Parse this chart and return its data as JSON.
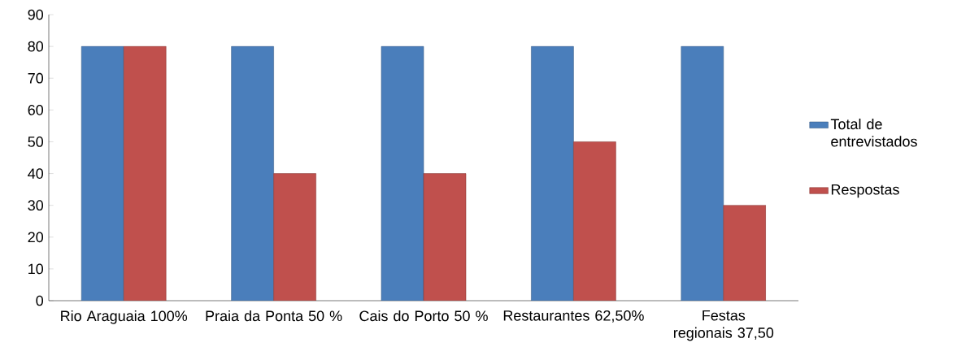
{
  "chart_data": {
    "type": "bar",
    "categories": [
      "Rio Araguaia 100%",
      "Praia da Ponta 50 %",
      "Cais do Porto 50 %",
      "Restaurantes 62,50%",
      "Festas regionais 37,50"
    ],
    "series": [
      {
        "name": "Total de entrevistados",
        "color": "#4a7ebb",
        "values": [
          80,
          80,
          80,
          80,
          80
        ]
      },
      {
        "name": "Respostas",
        "color": "#c0504d",
        "values": [
          80,
          40,
          40,
          50,
          30
        ]
      }
    ],
    "ylim": [
      0,
      90
    ],
    "yticks": [
      0,
      10,
      20,
      30,
      40,
      50,
      60,
      70,
      80,
      90
    ],
    "grid": false,
    "legend": "right"
  }
}
